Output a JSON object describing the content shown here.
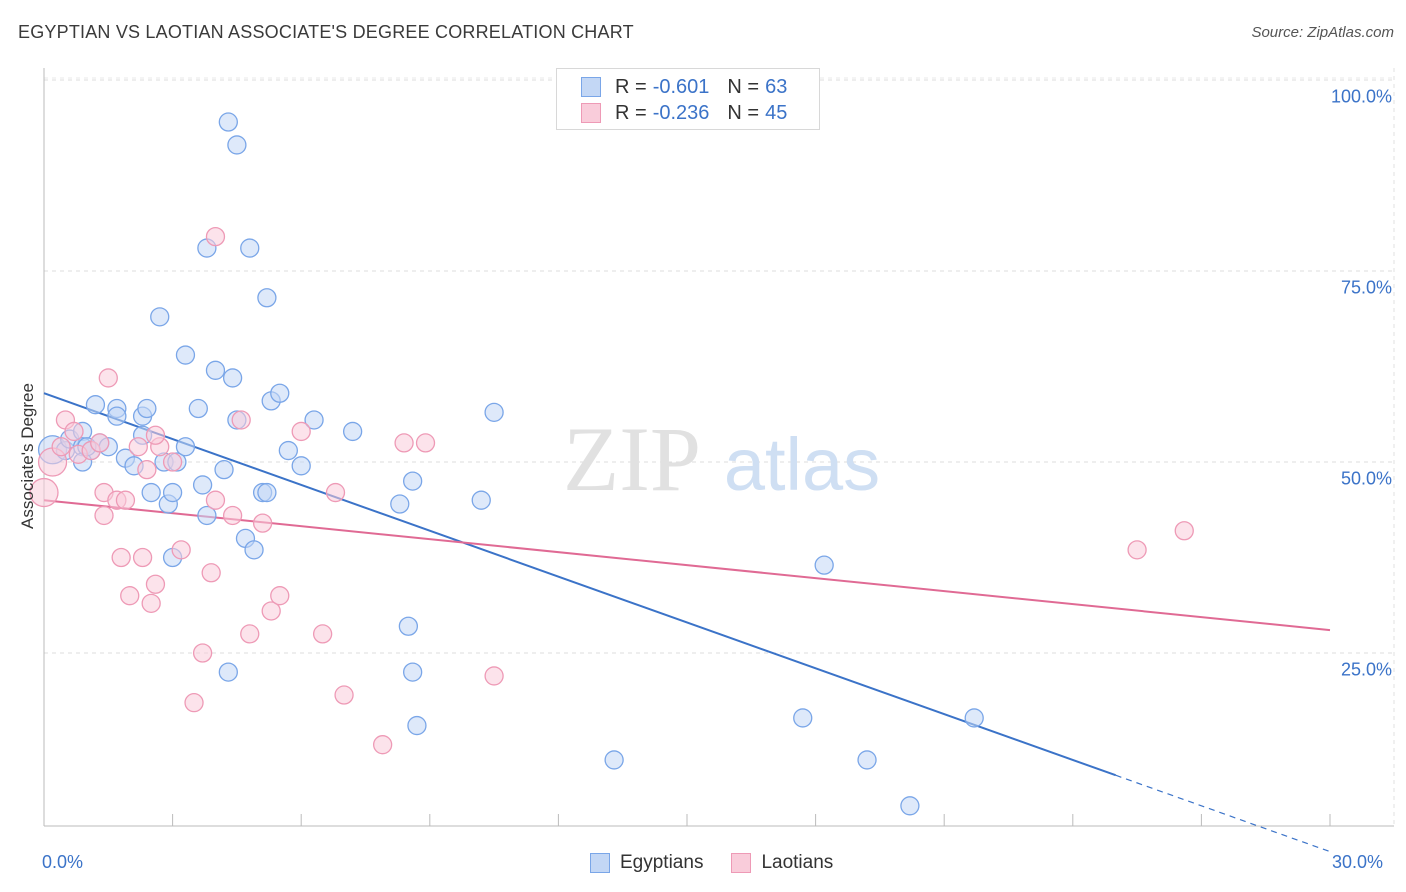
{
  "title": "EGYPTIAN VS LAOTIAN ASSOCIATE'S DEGREE CORRELATION CHART",
  "source": "Source: ZipAtlas.com",
  "watermark": {
    "zip": "ZIP",
    "atlas": "atlas"
  },
  "legend": {
    "rows": [
      {
        "r_label": "R =",
        "r_value": "-0.601",
        "n_label": "N =",
        "n_value": "63",
        "color": "#7aa6e8",
        "fill": "#c3d7f5"
      },
      {
        "r_label": "R =",
        "r_value": "-0.236",
        "n_label": "N =",
        "n_value": "45",
        "color": "#ee9ab6",
        "fill": "#f9ccda"
      }
    ]
  },
  "bottom_legend": [
    "Egyptians",
    "Laotians"
  ],
  "chart_data": {
    "type": "scatter",
    "title": "EGYPTIAN VS LAOTIAN ASSOCIATE'S DEGREE CORRELATION CHART",
    "xlabel": "",
    "ylabel": "Associate's Degree",
    "xlim": [
      0,
      30
    ],
    "ylim": [
      0,
      105
    ],
    "x_tick_labels": [
      "0.0%",
      "30.0%"
    ],
    "y_ticks": [
      25,
      50,
      75,
      100
    ],
    "y_tick_labels": [
      "25.0%",
      "50.0%",
      "75.0%",
      "100.0%"
    ],
    "grid": true,
    "series": [
      {
        "name": "Egyptians",
        "color": "#3b73c8",
        "fill": "#c3d7f5",
        "stroke": "#7aa6e8",
        "trend": {
          "x": [
            0,
            25
          ],
          "y": [
            59,
            9
          ],
          "dashed_to": [
            30,
            -1
          ]
        },
        "points": [
          [
            0.2,
            51.6
          ],
          [
            0.5,
            51.5
          ],
          [
            0.6,
            53
          ],
          [
            0.9,
            54
          ],
          [
            0.9,
            52
          ],
          [
            1.1,
            51.5
          ],
          [
            1.2,
            57.5
          ],
          [
            1.3,
            52.5
          ],
          [
            1.5,
            52
          ],
          [
            1.7,
            57
          ],
          [
            1.7,
            56
          ],
          [
            1.9,
            50.5
          ],
          [
            2.1,
            49.5
          ],
          [
            2.3,
            56
          ],
          [
            2.4,
            57
          ],
          [
            2.3,
            53.5
          ],
          [
            2.5,
            46
          ],
          [
            2.8,
            50
          ],
          [
            2.9,
            44.5
          ],
          [
            3.0,
            46
          ],
          [
            3.1,
            50
          ],
          [
            3.3,
            52
          ],
          [
            3.3,
            64
          ],
          [
            3.0,
            37.5
          ],
          [
            2.7,
            69
          ],
          [
            3.6,
            57
          ],
          [
            3.7,
            47
          ],
          [
            3.8,
            43
          ],
          [
            3.8,
            78
          ],
          [
            4.2,
            49
          ],
          [
            4.3,
            22.5
          ],
          [
            4.5,
            55.5
          ],
          [
            4.7,
            40
          ],
          [
            5.1,
            46
          ],
          [
            5.2,
            46
          ],
          [
            4.0,
            62
          ],
          [
            4.4,
            61
          ],
          [
            4.3,
            94.5
          ],
          [
            4.5,
            91.5
          ],
          [
            4.8,
            78
          ],
          [
            4.9,
            38.5
          ],
          [
            5.2,
            71.5
          ],
          [
            5.3,
            58
          ],
          [
            5.5,
            59
          ],
          [
            5.7,
            51.5
          ],
          [
            6.0,
            49.5
          ],
          [
            6.3,
            55.5
          ],
          [
            7.2,
            54
          ],
          [
            8.3,
            44.5
          ],
          [
            8.5,
            28.5
          ],
          [
            8.6,
            47.5
          ],
          [
            8.6,
            22.5
          ],
          [
            8.7,
            15.5
          ],
          [
            10.2,
            45
          ],
          [
            10.5,
            56.5
          ],
          [
            13.3,
            11
          ],
          [
            17.7,
            16.5
          ],
          [
            18.2,
            36.5
          ],
          [
            19.2,
            11
          ],
          [
            20.2,
            5
          ],
          [
            21.7,
            16.5
          ],
          [
            0.9,
            50
          ],
          [
            1.0,
            52
          ]
        ]
      },
      {
        "name": "Laotians",
        "color": "#e06a94",
        "fill": "#f9ccda",
        "stroke": "#ee9ab6",
        "trend": {
          "x": [
            0,
            30
          ],
          "y": [
            45,
            28
          ]
        },
        "points": [
          [
            0,
            46
          ],
          [
            0.2,
            50
          ],
          [
            0.4,
            52
          ],
          [
            0.5,
            55.5
          ],
          [
            0.7,
            54
          ],
          [
            0.8,
            51
          ],
          [
            1.1,
            51.5
          ],
          [
            1.3,
            52.5
          ],
          [
            1.4,
            43
          ],
          [
            1.4,
            46
          ],
          [
            1.5,
            61
          ],
          [
            1.7,
            45
          ],
          [
            1.8,
            37.5
          ],
          [
            1.9,
            45
          ],
          [
            2.0,
            32.5
          ],
          [
            2.2,
            52
          ],
          [
            2.3,
            37.5
          ],
          [
            2.5,
            31.5
          ],
          [
            2.6,
            34
          ],
          [
            2.7,
            52
          ],
          [
            2.6,
            53.5
          ],
          [
            3.0,
            50
          ],
          [
            3.2,
            38.5
          ],
          [
            3.5,
            18.5
          ],
          [
            3.7,
            25
          ],
          [
            3.9,
            35.5
          ],
          [
            4.0,
            45
          ],
          [
            4.0,
            79.5
          ],
          [
            4.4,
            43
          ],
          [
            4.6,
            55.5
          ],
          [
            4.8,
            27.5
          ],
          [
            5.1,
            42
          ],
          [
            5.3,
            30.5
          ],
          [
            5.5,
            32.5
          ],
          [
            6.0,
            54
          ],
          [
            6.5,
            27.5
          ],
          [
            6.8,
            46
          ],
          [
            7.0,
            19.5
          ],
          [
            7.9,
            13
          ],
          [
            8.4,
            52.5
          ],
          [
            8.9,
            52.5
          ],
          [
            10.5,
            22
          ],
          [
            25.5,
            38.5
          ],
          [
            26.6,
            41
          ],
          [
            2.4,
            49
          ]
        ]
      }
    ]
  }
}
